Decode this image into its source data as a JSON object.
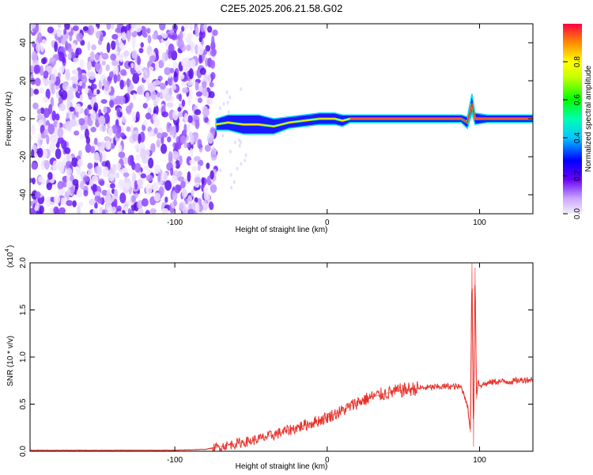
{
  "title": "C2E5.2025.206.21.58.G02",
  "chart_data": [
    {
      "type": "heatmap",
      "xlabel": "Height of straight line (km)",
      "ylabel": "Frequency (Hz)",
      "xlim": [
        -195,
        135
      ],
      "ylim": [
        -50,
        50
      ],
      "xticks": [
        -100,
        0,
        100
      ],
      "yticks": [
        -40,
        -20,
        0,
        20,
        40
      ],
      "noise_region_x": [
        -195,
        -73
      ],
      "signal_track": [
        {
          "x": -73,
          "y": -3,
          "w": 3
        },
        {
          "x": -65,
          "y": -2,
          "w": 4
        },
        {
          "x": -55,
          "y": -3,
          "w": 5
        },
        {
          "x": -45,
          "y": -3,
          "w": 5
        },
        {
          "x": -35,
          "y": -4,
          "w": 4
        },
        {
          "x": -25,
          "y": -2,
          "w": 3
        },
        {
          "x": -15,
          "y": -1,
          "w": 3
        },
        {
          "x": -5,
          "y": 0,
          "w": 3
        },
        {
          "x": 5,
          "y": 0,
          "w": 3
        },
        {
          "x": 10,
          "y": -1,
          "w": 3
        },
        {
          "x": 15,
          "y": 0,
          "w": 2
        },
        {
          "x": 40,
          "y": 0,
          "w": 2
        },
        {
          "x": 70,
          "y": 0,
          "w": 2
        },
        {
          "x": 88,
          "y": 0,
          "w": 2
        },
        {
          "x": 92,
          "y": -2,
          "w": 3
        },
        {
          "x": 95,
          "y": 8,
          "w": 5
        },
        {
          "x": 97,
          "y": 0,
          "w": 3
        },
        {
          "x": 105,
          "y": 0,
          "w": 2
        },
        {
          "x": 135,
          "y": 0,
          "w": 2
        }
      ],
      "colorbar": {
        "label": "Normalized spectral amplitude",
        "ticks": [
          0.0,
          0.2,
          0.4,
          0.6,
          0.8
        ],
        "range": [
          0,
          1
        ]
      }
    },
    {
      "type": "line",
      "xlabel": "Height of straight line (km)",
      "ylabel": "SNR (10 * v/v)",
      "yscale_label": "(x10",
      "yscale_exp": "4",
      "y_multiplier": 10000,
      "xlim": [
        -195,
        135
      ],
      "ylim": [
        0,
        2.0
      ],
      "xticks": [
        -100,
        0,
        100
      ],
      "yticks": [
        "0.0",
        "0.5",
        "1.0",
        "1.5",
        "2.0"
      ],
      "color": "#e8312a",
      "series": [
        {
          "x": [
            -195,
            -150,
            -100,
            -80,
            -70,
            -60,
            -50,
            -40,
            -30,
            -20,
            -10,
            0,
            10,
            20,
            30,
            40,
            50,
            60,
            70,
            80,
            88,
            92,
            94,
            95,
            96,
            97,
            98,
            99,
            100,
            105,
            110,
            120,
            130,
            135
          ],
          "y": [
            0.01,
            0.01,
            0.01,
            0.02,
            0.05,
            0.08,
            0.11,
            0.15,
            0.2,
            0.25,
            0.3,
            0.36,
            0.43,
            0.52,
            0.58,
            0.62,
            0.65,
            0.67,
            0.68,
            0.69,
            0.68,
            0.5,
            0.2,
            2.02,
            0.05,
            1.95,
            0.55,
            0.75,
            0.7,
            0.72,
            0.74,
            0.74,
            0.76,
            0.76
          ]
        }
      ]
    }
  ]
}
